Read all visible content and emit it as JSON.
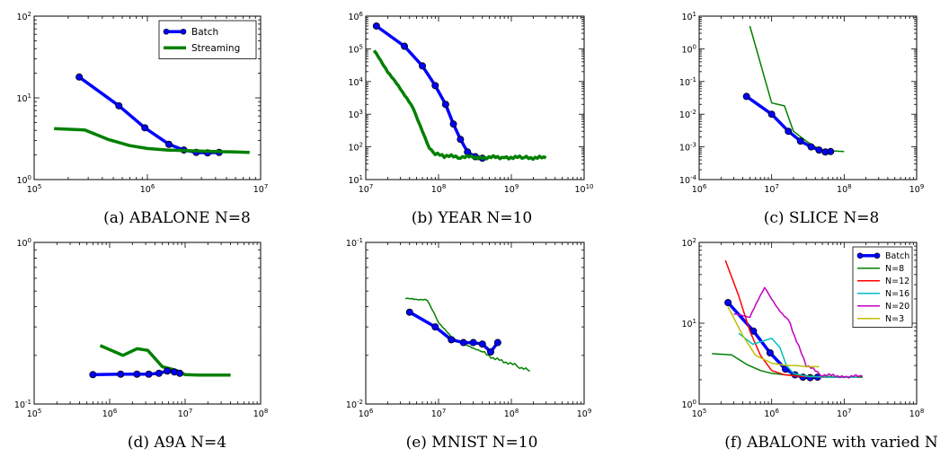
{
  "chart_data": [
    {
      "id": "a",
      "type": "line",
      "xscale": "log",
      "yscale": "log",
      "xlim": [
        100000.0,
        10000000.0
      ],
      "ylim": [
        1,
        100
      ],
      "xticks": [
        {
          "v": 100000.0,
          "base": "10",
          "exp": "5"
        },
        {
          "v": 1000000.0,
          "base": "10",
          "exp": "6"
        },
        {
          "v": 10000000.0,
          "base": "10",
          "exp": "7"
        }
      ],
      "yticks": [
        {
          "v": 1,
          "base": "10",
          "exp": "0"
        },
        {
          "v": 10,
          "base": "10",
          "exp": "1"
        },
        {
          "v": 100,
          "base": "10",
          "exp": "2"
        }
      ],
      "legend": "top-right",
      "caption": "(a) ABALONE N=8",
      "series": [
        {
          "name": "Batch",
          "color": "#0000ff",
          "width": 3.5,
          "markers": true,
          "x": [
            250000,
            560000,
            950000,
            1550000,
            2100000,
            2700000,
            3400000,
            4300000
          ],
          "y": [
            18,
            8,
            4.3,
            2.7,
            2.3,
            2.15,
            2.12,
            2.15
          ]
        },
        {
          "name": "Streaming",
          "color": "#008000",
          "width": 3.5,
          "markers": false,
          "x": [
            150000,
            280000,
            450000,
            700000,
            1000000,
            1500000,
            2500000,
            4000000,
            6000000,
            8000000
          ],
          "y": [
            4.2,
            4.05,
            3.1,
            2.6,
            2.4,
            2.3,
            2.25,
            2.2,
            2.18,
            2.15
          ]
        }
      ]
    },
    {
      "id": "b",
      "type": "line",
      "xscale": "log",
      "yscale": "log",
      "xlim": [
        10000000.0,
        10000000000.0
      ],
      "ylim": [
        10,
        1000000.0
      ],
      "xticks": [
        {
          "v": 10000000.0,
          "base": "10",
          "exp": "7"
        },
        {
          "v": 100000000.0,
          "base": "10",
          "exp": "8"
        },
        {
          "v": 1000000000.0,
          "base": "10",
          "exp": "9"
        },
        {
          "v": 10000000000.0,
          "base": "10",
          "exp": "10"
        }
      ],
      "yticks": [
        {
          "v": 10,
          "base": "10",
          "exp": "1"
        },
        {
          "v": 100,
          "base": "10",
          "exp": "2"
        },
        {
          "v": 1000,
          "base": "10",
          "exp": "3"
        },
        {
          "v": 10000,
          "base": "10",
          "exp": "4"
        },
        {
          "v": 100000,
          "base": "10",
          "exp": "5"
        },
        {
          "v": 1000000,
          "base": "10",
          "exp": "6"
        }
      ],
      "caption": "(b) YEAR N=10",
      "series": [
        {
          "name": "Batch",
          "color": "#0000ff",
          "width": 3.5,
          "markers": true,
          "x": [
            14000000,
            34000000,
            60000000,
            90000000,
            125000000,
            160000000,
            200000000,
            250000000,
            320000000,
            400000000
          ],
          "y": [
            500000,
            120000,
            30000,
            7500,
            2000,
            500,
            170,
            70,
            50,
            45
          ]
        },
        {
          "name": "Streaming",
          "color": "#008000",
          "width": 3.5,
          "markers": false,
          "jitter": true,
          "x": [
            13000000,
            20000000,
            30000000,
            45000000,
            60000000,
            75000000,
            90000000,
            120000000,
            200000000,
            400000000,
            800000000,
            1500000000,
            3000000000
          ],
          "y": [
            90000,
            20000,
            6000,
            1500,
            300,
            90,
            60,
            52,
            50,
            48,
            48,
            47,
            46
          ]
        }
      ]
    },
    {
      "id": "c",
      "type": "line",
      "xscale": "log",
      "yscale": "log",
      "xlim": [
        1000000.0,
        1000000000.0
      ],
      "ylim": [
        0.0001,
        10
      ],
      "xticks": [
        {
          "v": 1000000.0,
          "base": "10",
          "exp": "6"
        },
        {
          "v": 10000000.0,
          "base": "10",
          "exp": "7"
        },
        {
          "v": 100000000.0,
          "base": "10",
          "exp": "8"
        },
        {
          "v": 1000000000.0,
          "base": "10",
          "exp": "9"
        }
      ],
      "yticks": [
        {
          "v": 0.0001,
          "base": "10",
          "exp": "-4"
        },
        {
          "v": 0.001,
          "base": "10",
          "exp": "-3"
        },
        {
          "v": 0.01,
          "base": "10",
          "exp": "-2"
        },
        {
          "v": 0.1,
          "base": "10",
          "exp": "-1"
        },
        {
          "v": 1,
          "base": "10",
          "exp": "0"
        },
        {
          "v": 10,
          "base": "10",
          "exp": "1"
        }
      ],
      "caption": "(c) SLICE N=8",
      "series": [
        {
          "name": "Streaming",
          "color": "#008000",
          "width": 1.5,
          "markers": false,
          "x": [
            5000000,
            10000000,
            15000000,
            20000000,
            30000000,
            40000000,
            50000000,
            70000000,
            100000000
          ],
          "y": [
            5,
            0.022,
            0.018,
            0.003,
            0.0015,
            0.001,
            0.0008,
            0.00075,
            0.00072
          ]
        },
        {
          "name": "Batch",
          "color": "#0000ff",
          "width": 3.5,
          "markers": true,
          "x": [
            4500000,
            10000000,
            17000000,
            25000000,
            35000000,
            45000000,
            55000000,
            65000000
          ],
          "y": [
            0.035,
            0.01,
            0.003,
            0.0015,
            0.001,
            0.0008,
            0.0007,
            0.00072
          ]
        }
      ]
    },
    {
      "id": "d",
      "type": "line",
      "xscale": "log",
      "yscale": "log",
      "xlim": [
        100000.0,
        100000000.0
      ],
      "ylim": [
        0.1,
        1
      ],
      "xticks": [
        {
          "v": 100000.0,
          "base": "10",
          "exp": "5"
        },
        {
          "v": 1000000.0,
          "base": "10",
          "exp": "6"
        },
        {
          "v": 10000000.0,
          "base": "10",
          "exp": "7"
        },
        {
          "v": 100000000.0,
          "base": "10",
          "exp": "8"
        }
      ],
      "yticks": [
        {
          "v": 0.1,
          "base": "10",
          "exp": "-1"
        },
        {
          "v": 1,
          "base": "10",
          "exp": "0"
        }
      ],
      "caption": "(d) A9A N=4",
      "series": [
        {
          "name": "Streaming",
          "color": "#008000",
          "width": 3.5,
          "markers": false,
          "x": [
            750000,
            1500000,
            2300000,
            3200000,
            5000000,
            6500000,
            8000000,
            10000000,
            15000000,
            40000000
          ],
          "y": [
            0.23,
            0.2,
            0.22,
            0.215,
            0.17,
            0.165,
            0.16,
            0.152,
            0.151,
            0.151
          ]
        },
        {
          "name": "Batch",
          "color": "#0000ff",
          "width": 3.5,
          "markers": true,
          "x": [
            600000,
            1400000,
            2300000,
            3300000,
            4500000,
            5800000,
            7200000,
            8500000
          ],
          "y": [
            0.152,
            0.153,
            0.153,
            0.153,
            0.155,
            0.16,
            0.158,
            0.155
          ]
        }
      ]
    },
    {
      "id": "e",
      "type": "line",
      "xscale": "log",
      "yscale": "log",
      "xlim": [
        1000000.0,
        1000000000.0
      ],
      "ylim": [
        0.01,
        0.1
      ],
      "xticks": [
        {
          "v": 1000000.0,
          "base": "10",
          "exp": "6"
        },
        {
          "v": 10000000.0,
          "base": "10",
          "exp": "7"
        },
        {
          "v": 100000000.0,
          "base": "10",
          "exp": "8"
        },
        {
          "v": 1000000000.0,
          "base": "10",
          "exp": "9"
        }
      ],
      "yticks": [
        {
          "v": 0.01,
          "base": "10",
          "exp": "-2"
        },
        {
          "v": 0.1,
          "base": "10",
          "exp": "-1"
        }
      ],
      "caption": "(e) MNIST N=10",
      "series": [
        {
          "name": "Streaming",
          "color": "#008000",
          "width": 1.5,
          "markers": false,
          "jitter": true,
          "x": [
            3500000,
            7000000,
            10000000,
            15000000,
            25000000,
            40000000,
            60000000,
            90000000,
            130000000,
            180000000
          ],
          "y": [
            0.045,
            0.044,
            0.032,
            0.026,
            0.023,
            0.021,
            0.019,
            0.018,
            0.017,
            0.016
          ]
        },
        {
          "name": "Batch",
          "color": "#0000ff",
          "width": 3.5,
          "markers": true,
          "x": [
            4000000,
            9000000,
            15000000,
            22000000,
            30000000,
            40000000,
            52000000,
            65000000
          ],
          "y": [
            0.037,
            0.03,
            0.025,
            0.024,
            0.024,
            0.0235,
            0.021,
            0.024
          ]
        }
      ]
    },
    {
      "id": "f",
      "type": "line",
      "xscale": "log",
      "yscale": "log",
      "xlim": [
        100000.0,
        100000000.0
      ],
      "ylim": [
        1,
        100
      ],
      "xticks": [
        {
          "v": 100000.0,
          "base": "10",
          "exp": "5"
        },
        {
          "v": 1000000.0,
          "base": "10",
          "exp": "6"
        },
        {
          "v": 10000000.0,
          "base": "10",
          "exp": "7"
        },
        {
          "v": 100000000.0,
          "base": "10",
          "exp": "8"
        }
      ],
      "yticks": [
        {
          "v": 1,
          "base": "10",
          "exp": "0"
        },
        {
          "v": 10,
          "base": "10",
          "exp": "1"
        },
        {
          "v": 100,
          "base": "10",
          "exp": "2"
        }
      ],
      "legend": "top-right",
      "caption": "(f) ABALONE with varied N",
      "series": [
        {
          "name": "Batch",
          "color": "#0000ff",
          "width": 3.5,
          "markers": true,
          "x": [
            250000,
            560000,
            950000,
            1550000,
            2100000,
            2700000,
            3400000,
            4300000
          ],
          "y": [
            18,
            8,
            4.3,
            2.7,
            2.3,
            2.15,
            2.12,
            2.15
          ]
        },
        {
          "name": "N=8",
          "color": "#008000",
          "width": 1.5,
          "markers": false,
          "x": [
            150000,
            280000,
            450000,
            700000,
            1000000,
            1500000,
            2500000,
            4000000,
            8000000,
            18000000
          ],
          "y": [
            4.2,
            4.05,
            3.1,
            2.6,
            2.4,
            2.3,
            2.25,
            2.2,
            2.18,
            2.15
          ]
        },
        {
          "name": "N=12",
          "color": "#ff0000",
          "width": 1.5,
          "markers": false,
          "x": [
            230000,
            350000,
            500000,
            700000,
            1000000,
            1500000,
            2500000,
            5000000,
            10000000
          ],
          "y": [
            60,
            22,
            8,
            4,
            2.6,
            2.3,
            2.2,
            2.15,
            2.15
          ]
        },
        {
          "name": "N=16",
          "color": "#00bfbf",
          "width": 1.5,
          "markers": false,
          "x": [
            350000,
            550000,
            750000,
            1000000,
            1300000,
            1600000,
            2000000,
            3000000,
            6000000,
            15000000
          ],
          "y": [
            7.5,
            5.5,
            6,
            6.5,
            5,
            3,
            2.4,
            2.2,
            2.15,
            2.15
          ]
        },
        {
          "name": "N=20",
          "color": "#bf00bf",
          "width": 1.5,
          "markers": false,
          "jitter": true,
          "x": [
            300000,
            500000,
            800000,
            1000000,
            1300000,
            1700000,
            2200000,
            3000000,
            5000000,
            10000000,
            18000000
          ],
          "y": [
            13,
            12,
            28,
            20,
            14,
            11,
            6,
            3,
            2.3,
            2.2,
            2.2
          ]
        },
        {
          "name": "N=3",
          "color": "#bfbf00",
          "width": 1.5,
          "markers": false,
          "x": [
            250000,
            400000,
            600000,
            1000000,
            1600000,
            2200000,
            3000000,
            4500000
          ],
          "y": [
            16,
            7,
            4,
            3.2,
            3,
            3,
            2.9,
            2.9
          ]
        }
      ]
    }
  ]
}
